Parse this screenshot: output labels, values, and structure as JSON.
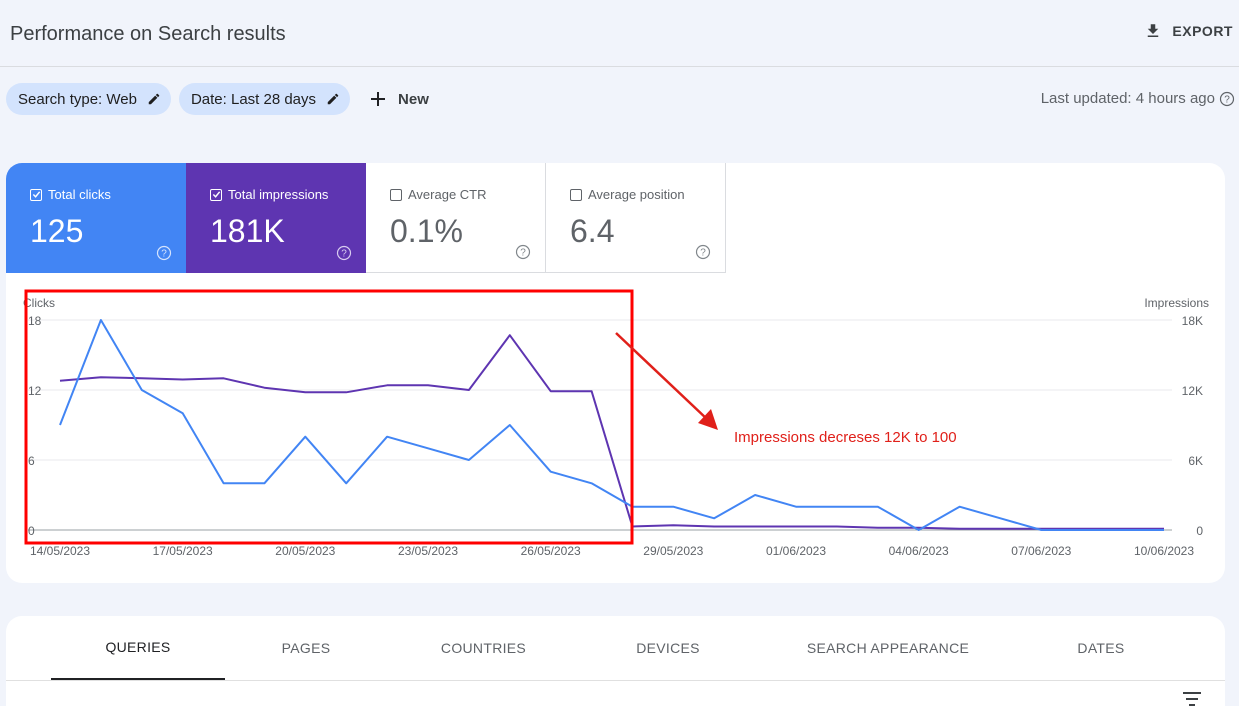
{
  "header": {
    "title": "Performance on Search results",
    "export_label": "EXPORT"
  },
  "filters": {
    "chips": [
      {
        "label": "Search type: Web"
      },
      {
        "label": "Date: Last 28 days"
      }
    ],
    "new_label": "New",
    "last_updated": "Last updated: 4 hours ago"
  },
  "metrics": [
    {
      "label": "Total clicks",
      "value": "125",
      "checked": true,
      "color": "#4285f4"
    },
    {
      "label": "Total impressions",
      "value": "181K",
      "checked": true,
      "color": "#5e35b1"
    },
    {
      "label": "Average CTR",
      "value": "0.1%",
      "checked": false
    },
    {
      "label": "Average position",
      "value": "6.4",
      "checked": false
    }
  ],
  "chart_data": {
    "type": "line",
    "left_axis_label": "Clicks",
    "right_axis_label": "Impressions",
    "left_ticks": [
      "18",
      "12",
      "6",
      "0"
    ],
    "right_ticks": [
      "18K",
      "12K",
      "6K",
      "0"
    ],
    "left_ylim": [
      0,
      18
    ],
    "right_ylim": [
      0,
      18000
    ],
    "x_tick_labels": [
      "14/05/2023",
      "17/05/2023",
      "20/05/2023",
      "23/05/2023",
      "26/05/2023",
      "29/05/2023",
      "01/06/2023",
      "04/06/2023",
      "07/06/2023",
      "10/06/2023"
    ],
    "x": [
      "14/05/2023",
      "15/05/2023",
      "16/05/2023",
      "17/05/2023",
      "18/05/2023",
      "19/05/2023",
      "20/05/2023",
      "21/05/2023",
      "22/05/2023",
      "23/05/2023",
      "24/05/2023",
      "25/05/2023",
      "26/05/2023",
      "27/05/2023",
      "28/05/2023",
      "29/05/2023",
      "30/05/2023",
      "31/05/2023",
      "01/06/2023",
      "02/06/2023",
      "03/06/2023",
      "04/06/2023",
      "05/06/2023",
      "06/06/2023",
      "07/06/2023",
      "08/06/2023",
      "09/06/2023",
      "10/06/2023"
    ],
    "series": [
      {
        "axis": "left",
        "color": "#4285f4",
        "values": [
          9,
          18,
          12,
          10,
          4,
          4,
          8,
          4,
          8,
          7,
          6,
          9,
          5,
          4,
          2,
          2,
          1,
          3,
          2,
          2,
          2,
          0,
          2,
          1,
          0,
          0,
          0,
          0
        ]
      },
      {
        "axis": "right",
        "color": "#5e35b1",
        "values": [
          12800,
          13100,
          13000,
          12900,
          13000,
          12200,
          11800,
          11800,
          12400,
          12400,
          12000,
          16700,
          11900,
          11900,
          300,
          400,
          300,
          300,
          300,
          300,
          200,
          200,
          100,
          100,
          100,
          100,
          100,
          100
        ]
      }
    ],
    "annotation": "Impressions decreses 12K to 100",
    "highlight_color": "#ff0000",
    "arrow_color": "#e0201a"
  },
  "tabs": [
    {
      "label": "QUERIES",
      "active": true
    },
    {
      "label": "PAGES"
    },
    {
      "label": "COUNTRIES"
    },
    {
      "label": "DEVICES"
    },
    {
      "label": "SEARCH APPEARANCE"
    },
    {
      "label": "DATES"
    }
  ]
}
